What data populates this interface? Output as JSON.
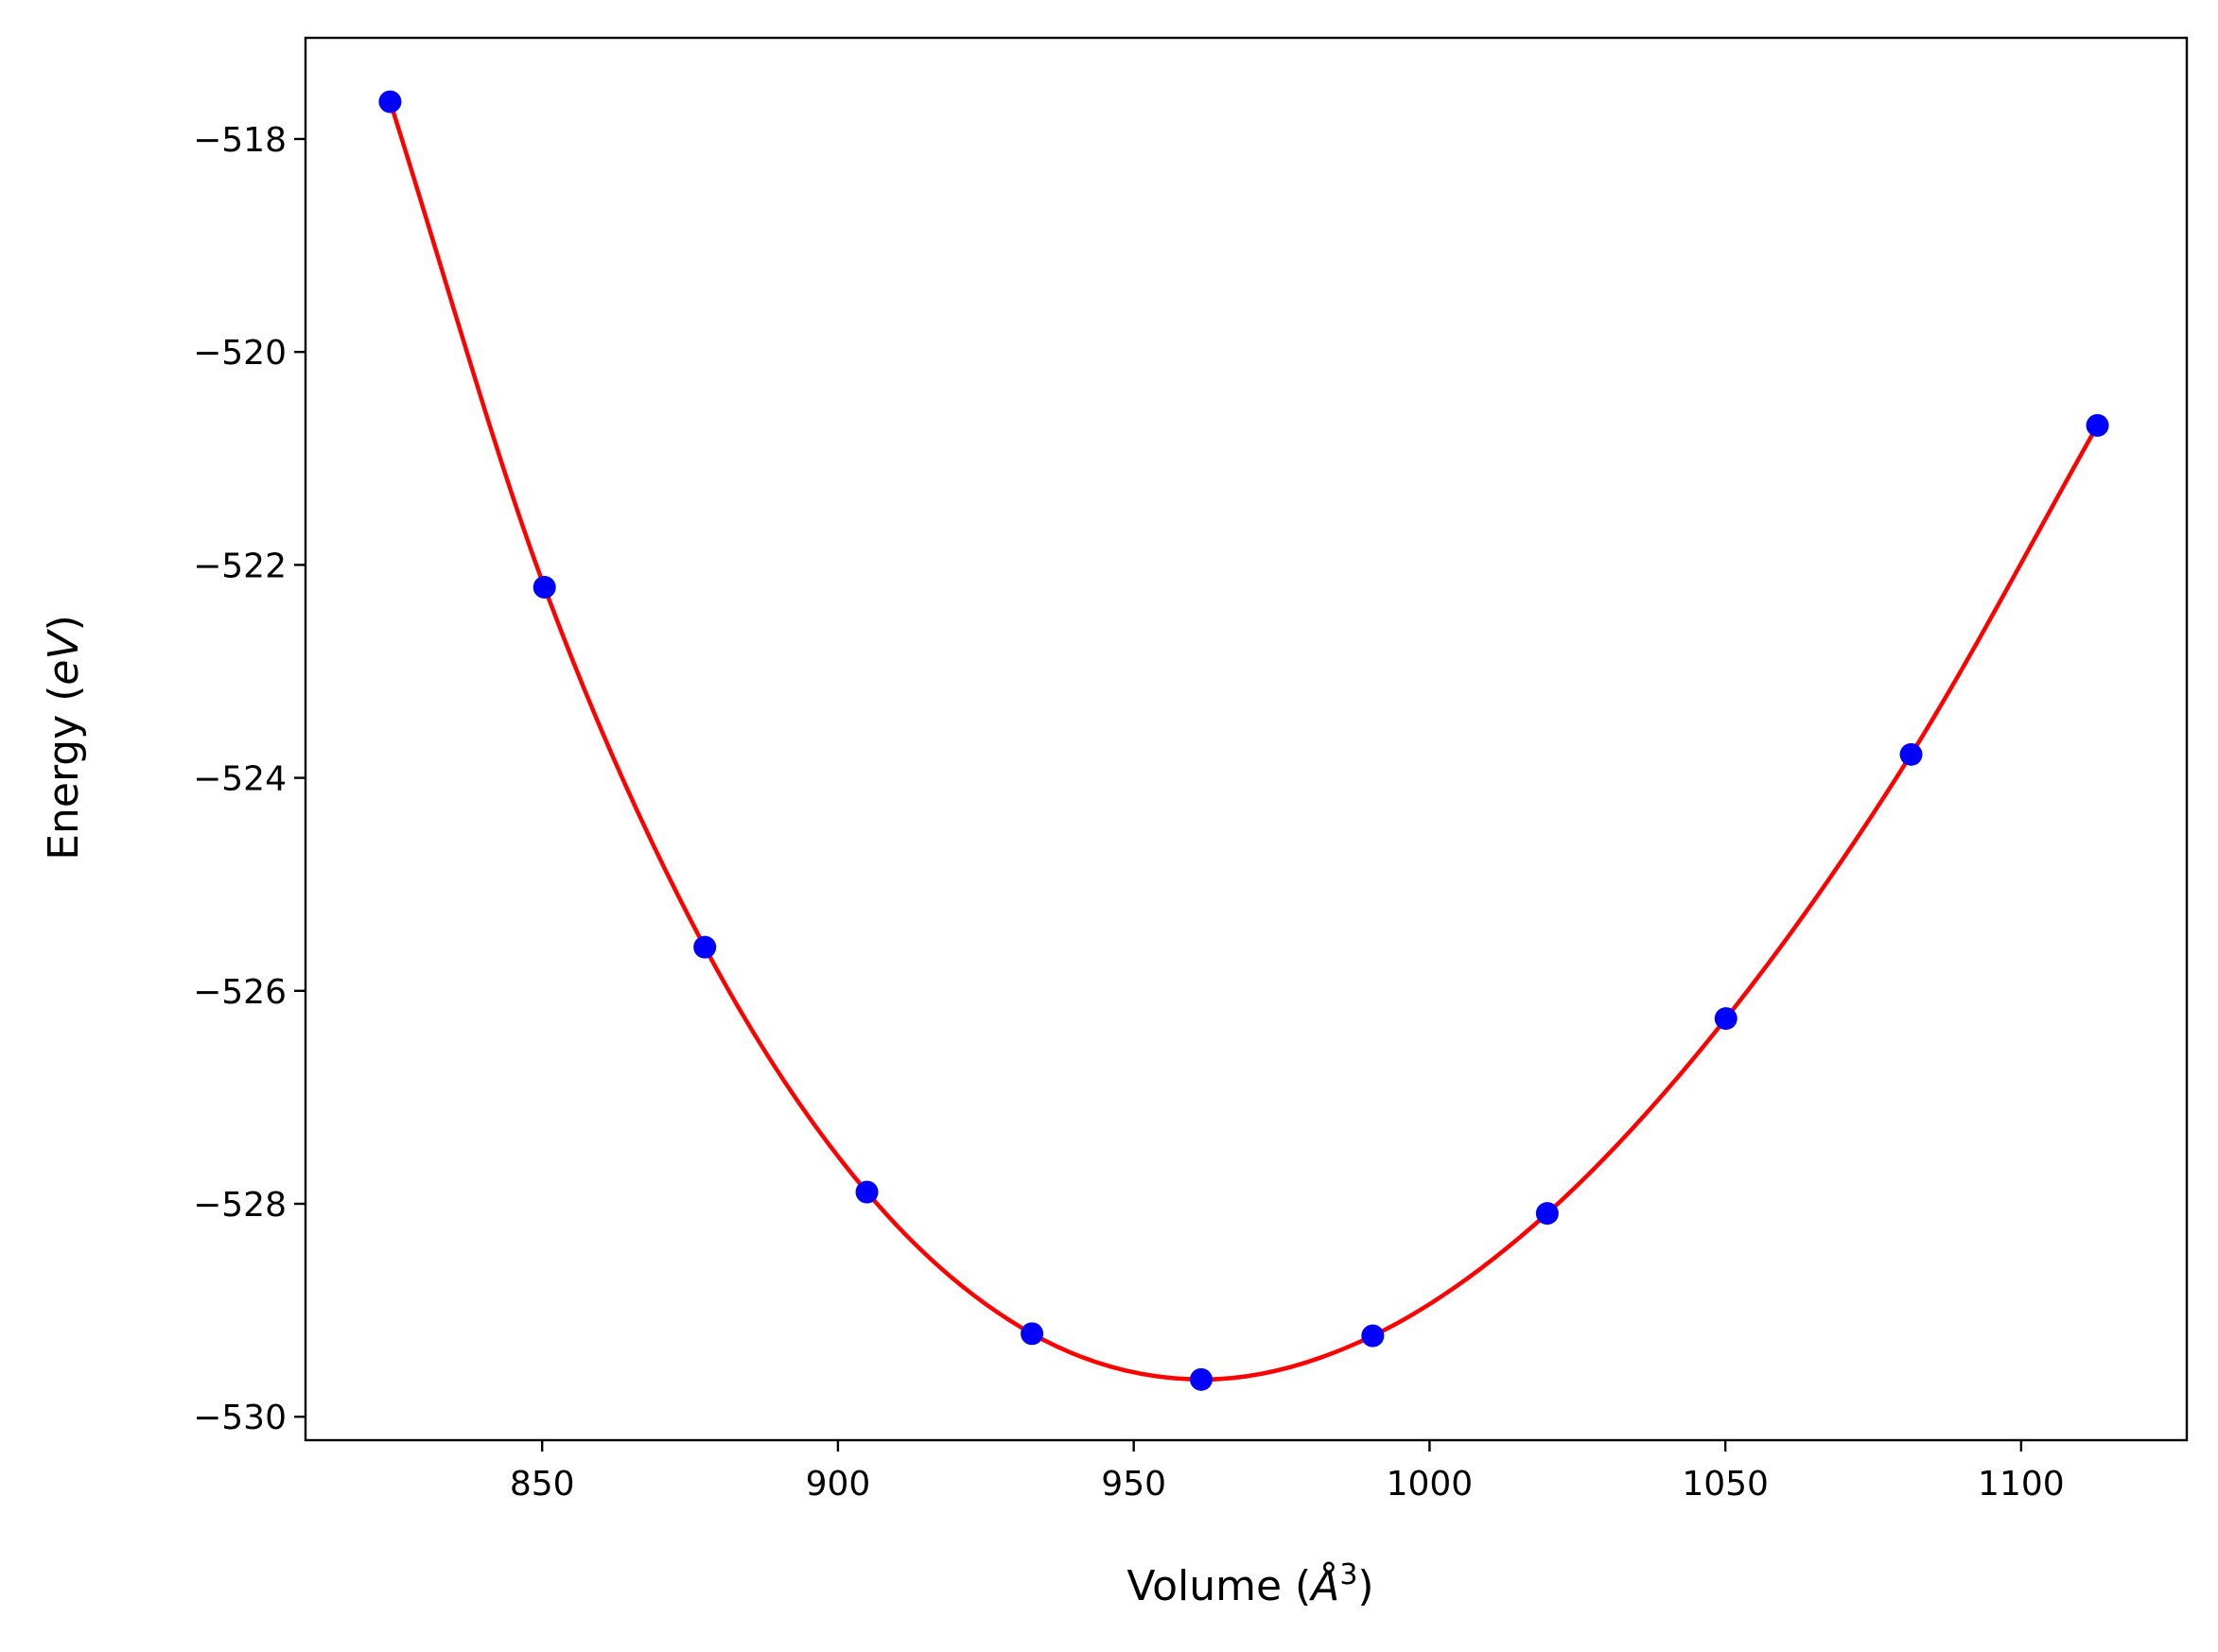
{
  "chart_data": {
    "type": "line",
    "xlabel": {
      "main": "Volume (",
      "symbol": "Å",
      "sup": "3",
      "close": ")"
    },
    "ylabel": {
      "main": "Energy (",
      "symbol": "eV",
      "close": ")"
    },
    "xlim": [
      810,
      1128
    ],
    "ylim": [
      -530.22,
      -517.05
    ],
    "xticks": [
      850,
      900,
      950,
      1000,
      1050,
      1100
    ],
    "xtick_labels": [
      "850",
      "900",
      "950",
      "1000",
      "1050",
      "1100"
    ],
    "yticks": [
      -518,
      -520,
      -522,
      -524,
      -526,
      -528,
      -530
    ],
    "ytick_labels": [
      "−518",
      "−520",
      "−522",
      "−524",
      "−526",
      "−528",
      "−530"
    ],
    "grid": false,
    "series": [
      {
        "kind": "points",
        "color": "#0000ff",
        "x": [
          824.3,
          850.4,
          877.5,
          904.9,
          932.8,
          961.4,
          990.4,
          1019.9,
          1050.1,
          1081.4,
          1112.9
        ],
        "y": [
          -517.65,
          -522.21,
          -525.59,
          -527.89,
          -529.22,
          -529.65,
          -529.24,
          -528.09,
          -526.26,
          -523.78,
          -520.69
        ]
      },
      {
        "kind": "fit",
        "color": "#ff0000",
        "x": [
          824.3,
          850.4,
          877.5,
          904.9,
          932.8,
          961.4,
          990.4,
          1019.9,
          1050.1,
          1081.4,
          1112.9
        ],
        "y": [
          -517.65,
          -522.21,
          -525.59,
          -527.89,
          -529.22,
          -529.65,
          -529.24,
          -528.09,
          -526.26,
          -523.78,
          -520.69
        ]
      }
    ]
  }
}
